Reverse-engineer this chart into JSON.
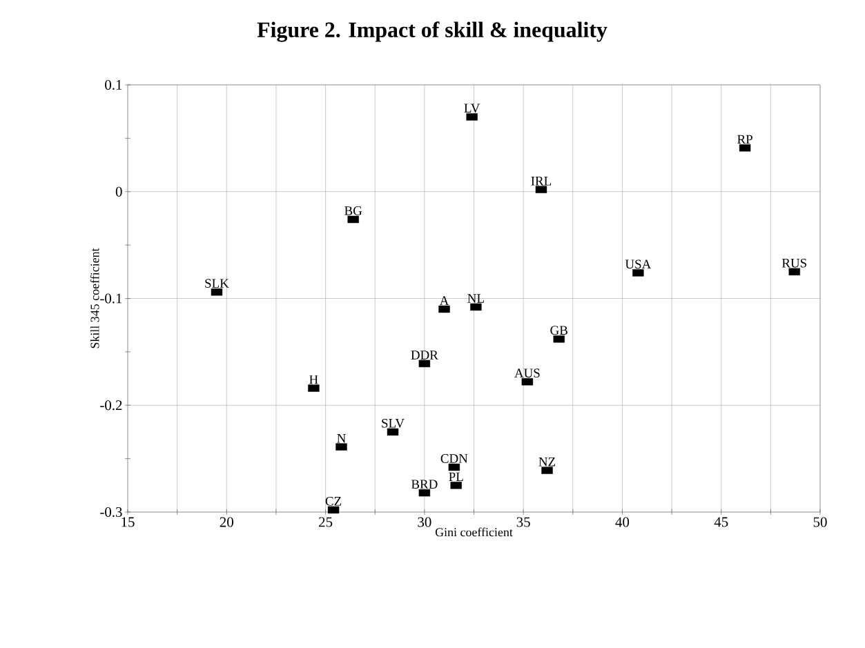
{
  "chart_data": {
    "type": "scatter",
    "title": "Figure 2. Impact of skill & inequality",
    "xlabel": "Gini coefficient",
    "ylabel": "Skill 345 coefficient",
    "x": [
      32.4,
      46.2,
      35.9,
      26.4,
      40.8,
      48.7,
      19.5,
      31.0,
      32.6,
      36.8,
      30.0,
      35.2,
      24.4,
      28.4,
      25.8,
      31.5,
      36.2,
      31.6,
      30.0,
      25.4
    ],
    "values": [
      0.07,
      0.041,
      0.002,
      -0.026,
      -0.076,
      -0.075,
      -0.094,
      -0.11,
      -0.108,
      -0.138,
      -0.161,
      -0.178,
      -0.184,
      -0.225,
      -0.239,
      -0.258,
      -0.261,
      -0.275,
      -0.282,
      -0.298
    ],
    "color": "#000000",
    "marker": "square",
    "grid": true,
    "xlim": [
      15,
      50
    ],
    "ylim": [
      -0.3,
      0.1
    ],
    "xticks": [
      15,
      {
        "value": 17.5,
        "label": null
      },
      20,
      {
        "value": 22.5,
        "label": null
      },
      25,
      {
        "value": 27.5,
        "label": null
      },
      30,
      {
        "value": 32.5,
        "label": null
      },
      35,
      {
        "value": 37.5,
        "label": null
      },
      40,
      {
        "value": 42.5,
        "label": null
      },
      45,
      {
        "value": 47.5,
        "label": null
      },
      50
    ],
    "yticks": [
      0.1,
      {
        "value": 0.05,
        "label": null
      },
      0,
      {
        "value": -0.05,
        "label": null
      },
      -0.1,
      {
        "value": -0.15,
        "label": null
      },
      -0.2,
      {
        "value": -0.25,
        "label": null
      },
      -0.3
    ],
    "annotations": [
      {
        "text": "LV",
        "x": 32.4,
        "y": 0.07
      },
      {
        "text": "RP",
        "x": 46.2,
        "y": 0.041
      },
      {
        "text": "IRL",
        "x": 35.9,
        "y": 0.002
      },
      {
        "text": "BG",
        "x": 26.4,
        "y": -0.026
      },
      {
        "text": "USA",
        "x": 40.8,
        "y": -0.076
      },
      {
        "text": "RUS",
        "x": 48.7,
        "y": -0.075
      },
      {
        "text": "SLK",
        "x": 19.5,
        "y": -0.094
      },
      {
        "text": "A",
        "x": 31.0,
        "y": -0.11
      },
      {
        "text": "NL",
        "x": 32.6,
        "y": -0.108
      },
      {
        "text": "GB",
        "x": 36.8,
        "y": -0.138
      },
      {
        "text": "DDR",
        "x": 30.0,
        "y": -0.161
      },
      {
        "text": "AUS",
        "x": 35.2,
        "y": -0.178
      },
      {
        "text": "H",
        "x": 24.4,
        "y": -0.184
      },
      {
        "text": "SLV",
        "x": 28.4,
        "y": -0.225
      },
      {
        "text": "N",
        "x": 25.8,
        "y": -0.239
      },
      {
        "text": "CDN",
        "x": 31.5,
        "y": -0.258
      },
      {
        "text": "NZ",
        "x": 36.2,
        "y": -0.261
      },
      {
        "text": "PL",
        "x": 31.6,
        "y": -0.275
      },
      {
        "text": "BRD",
        "x": 30.0,
        "y": -0.282
      },
      {
        "text": "CZ",
        "x": 25.4,
        "y": -0.298
      }
    ]
  }
}
